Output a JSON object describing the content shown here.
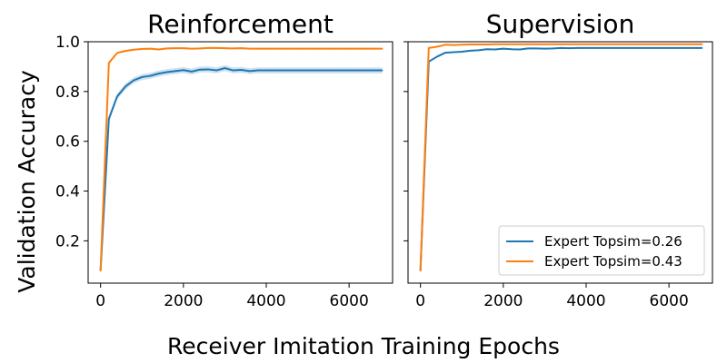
{
  "figure": {
    "xlabel": "Receiver Imitation Training Epochs",
    "ylabel": "Validation Accuracy"
  },
  "chart_data": [
    {
      "type": "line",
      "title": "Reinforcement",
      "xlabel": "Receiver Imitation Training Epochs",
      "ylabel": "Validation Accuracy",
      "xlim": [
        -300,
        7050
      ],
      "ylim": [
        0.03,
        1.0
      ],
      "xticks": [
        0,
        2000,
        4000,
        6000
      ],
      "yticks": [
        0.2,
        0.4,
        0.6,
        0.8,
        1.0
      ],
      "ytick_labels": [
        "0.2",
        "0.4",
        "0.6",
        "0.8",
        "1.0"
      ],
      "grid": false,
      "series": [
        {
          "name": "Expert Topsim=0.26",
          "color": "#1f77b4",
          "band": 0.012,
          "x": [
            0,
            200,
            400,
            600,
            800,
            1000,
            1200,
            1400,
            1600,
            1800,
            2000,
            2200,
            2400,
            2600,
            2800,
            3000,
            3200,
            3400,
            3600,
            3800,
            4000,
            4400,
            4800,
            5200,
            5600,
            6000,
            6400,
            6800
          ],
          "y": [
            0.08,
            0.69,
            0.78,
            0.82,
            0.845,
            0.858,
            0.863,
            0.872,
            0.878,
            0.882,
            0.886,
            0.88,
            0.888,
            0.889,
            0.885,
            0.894,
            0.885,
            0.887,
            0.882,
            0.885,
            0.885,
            0.885,
            0.885,
            0.885,
            0.885,
            0.885,
            0.885,
            0.885
          ]
        },
        {
          "name": "Expert Topsim=0.43",
          "color": "#ff7f0e",
          "band": 0.004,
          "x": [
            0,
            200,
            400,
            600,
            800,
            1000,
            1200,
            1400,
            1600,
            1800,
            2000,
            2200,
            2400,
            2600,
            2800,
            3000,
            3200,
            3400,
            3600,
            3800,
            4000,
            4400,
            4800,
            5200,
            5600,
            6000,
            6400,
            6800
          ],
          "y": [
            0.08,
            0.915,
            0.955,
            0.963,
            0.968,
            0.971,
            0.972,
            0.969,
            0.973,
            0.974,
            0.974,
            0.972,
            0.973,
            0.975,
            0.975,
            0.974,
            0.973,
            0.974,
            0.972,
            0.972,
            0.972,
            0.972,
            0.972,
            0.972,
            0.972,
            0.972,
            0.972,
            0.972
          ]
        }
      ]
    },
    {
      "type": "line",
      "title": "Supervision",
      "xlabel": "Receiver Imitation Training Epochs",
      "ylabel": "Validation Accuracy",
      "xlim": [
        -300,
        7050
      ],
      "ylim": [
        0.03,
        1.0
      ],
      "xticks": [
        0,
        2000,
        4000,
        6000
      ],
      "yticks": [
        0.2,
        0.4,
        0.6,
        0.8,
        1.0
      ],
      "ytick_labels": [
        "",
        "",
        "",
        "",
        ""
      ],
      "grid": false,
      "legend": "lower right",
      "series": [
        {
          "name": "Expert Topsim=0.26",
          "color": "#1f77b4",
          "band": 0.003,
          "x": [
            0,
            200,
            400,
            600,
            800,
            1000,
            1200,
            1400,
            1600,
            1800,
            2000,
            2200,
            2400,
            2600,
            2800,
            3000,
            3200,
            3400,
            3600,
            3800,
            4000,
            4400,
            4800,
            5200,
            5600,
            6000,
            6400,
            6800
          ],
          "y": [
            0.08,
            0.92,
            0.94,
            0.956,
            0.958,
            0.96,
            0.964,
            0.966,
            0.97,
            0.969,
            0.972,
            0.97,
            0.969,
            0.973,
            0.973,
            0.972,
            0.973,
            0.975,
            0.974,
            0.975,
            0.975,
            0.975,
            0.975,
            0.975,
            0.975,
            0.975,
            0.975,
            0.975
          ]
        },
        {
          "name": "Expert Topsim=0.43",
          "color": "#ff7f0e",
          "band": 0.002,
          "x": [
            0,
            200,
            400,
            600,
            800,
            1000,
            1200,
            1400,
            1600,
            1800,
            2000,
            2200,
            2400,
            2600,
            2800,
            3000,
            3200,
            3400,
            3600,
            3800,
            4000,
            4400,
            4800,
            5200,
            5600,
            6000,
            6400,
            6800
          ],
          "y": [
            0.08,
            0.975,
            0.98,
            0.988,
            0.987,
            0.988,
            0.989,
            0.989,
            0.989,
            0.99,
            0.99,
            0.99,
            0.99,
            0.99,
            0.99,
            0.99,
            0.99,
            0.99,
            0.99,
            0.99,
            0.99,
            0.99,
            0.99,
            0.99,
            0.99,
            0.99,
            0.99,
            0.99
          ]
        }
      ]
    }
  ]
}
